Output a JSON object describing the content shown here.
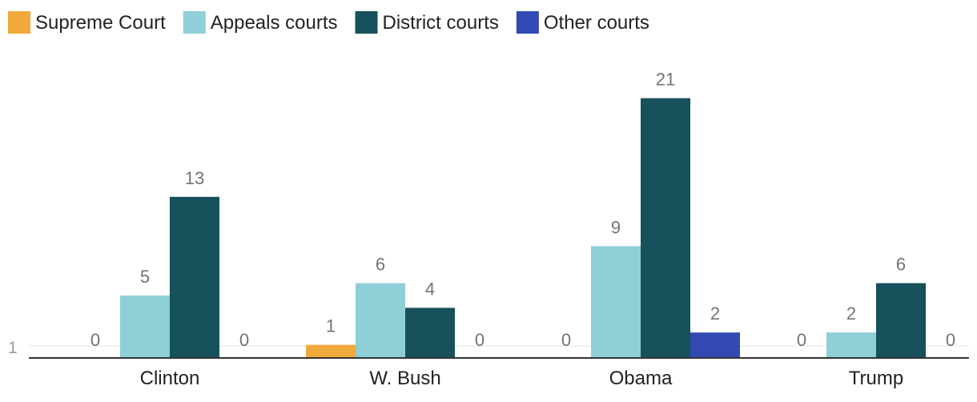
{
  "chart_data": {
    "type": "bar",
    "categories": [
      "Clinton",
      "W. Bush",
      "Obama",
      "Trump"
    ],
    "series": [
      {
        "name": "Supreme Court",
        "color": "#f2a93b",
        "values": [
          0,
          1,
          0,
          0
        ]
      },
      {
        "name": "Appeals courts",
        "color": "#8ecfd8",
        "values": [
          5,
          6,
          9,
          2
        ]
      },
      {
        "name": "District courts",
        "color": "#17515b",
        "values": [
          13,
          4,
          21,
          6
        ]
      },
      {
        "name": "Other courts",
        "color": "#3349b3",
        "values": [
          0,
          0,
          2,
          0
        ]
      }
    ],
    "y_ticks": [
      1
    ],
    "ylim": [
      0,
      21
    ],
    "legend_position": "top-left",
    "title": "",
    "xlabel": "",
    "ylabel": ""
  }
}
